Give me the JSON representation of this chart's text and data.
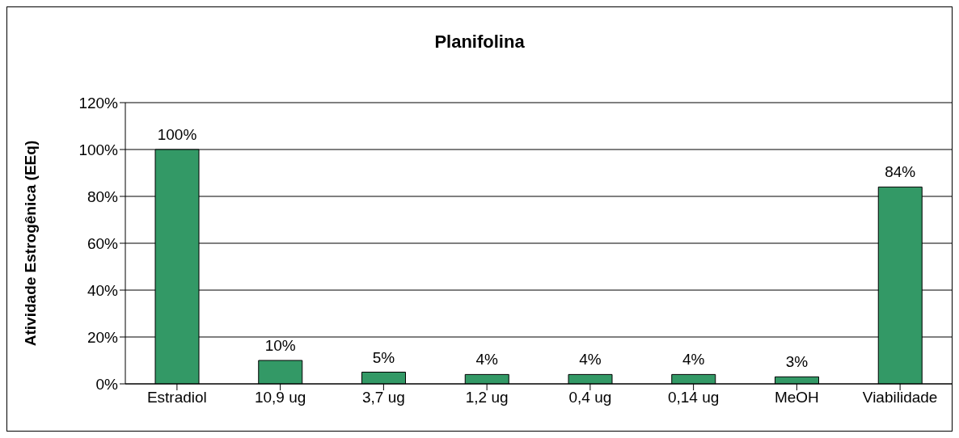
{
  "chart_data": {
    "type": "bar",
    "title": "Planifolina",
    "ylabel": "Atividade Estrogênica (EEq)",
    "categories": [
      "Estradiol",
      "10,9 ug",
      "3,7 ug",
      "1,2 ug",
      "0,4 ug",
      "0,14 ug",
      "MeOH",
      "Viabilidade"
    ],
    "values": [
      100,
      10,
      5,
      4,
      4,
      4,
      3,
      84
    ],
    "value_labels": [
      "100%",
      "10%",
      "5%",
      "4%",
      "4%",
      "4%",
      "3%",
      "84%"
    ],
    "color": "#339966",
    "ylim": [
      0,
      120
    ],
    "yticks": [
      {
        "value": 0,
        "label": "0%"
      },
      {
        "value": 20,
        "label": "20%"
      },
      {
        "value": 40,
        "label": "40%"
      },
      {
        "value": 60,
        "label": "60%"
      },
      {
        "value": 80,
        "label": "80%"
      },
      {
        "value": 100,
        "label": "100%"
      },
      {
        "value": 120,
        "label": "120%"
      }
    ],
    "grid": "y",
    "legend": false
  }
}
